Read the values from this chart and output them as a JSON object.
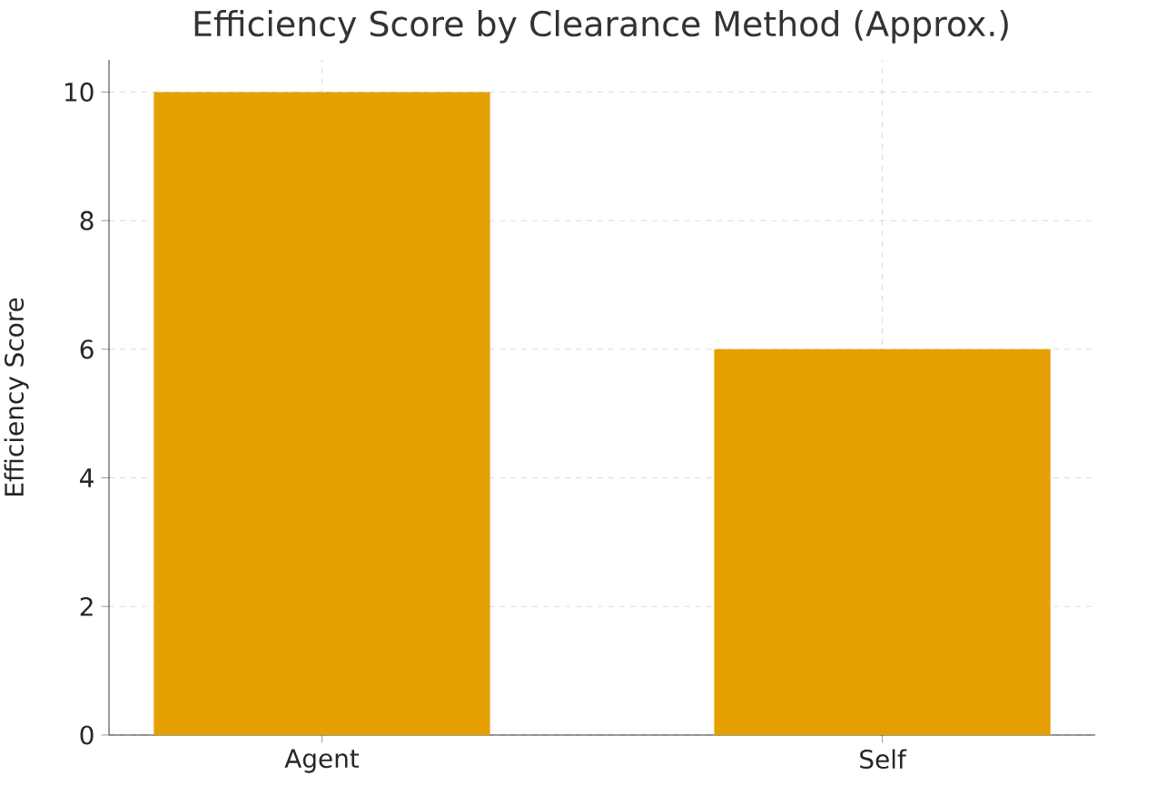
{
  "chart_data": {
    "type": "bar",
    "title": "Efficiency Score by Clearance Method (Approx.)",
    "ylabel": "Efficiency Score",
    "categories": [
      "Agent",
      "Self"
    ],
    "values": [
      10,
      6
    ],
    "color": "#e69f00",
    "ylim": [
      0,
      10.5
    ],
    "yticks": [
      0,
      2,
      4,
      6,
      8,
      10
    ],
    "grid": true
  }
}
